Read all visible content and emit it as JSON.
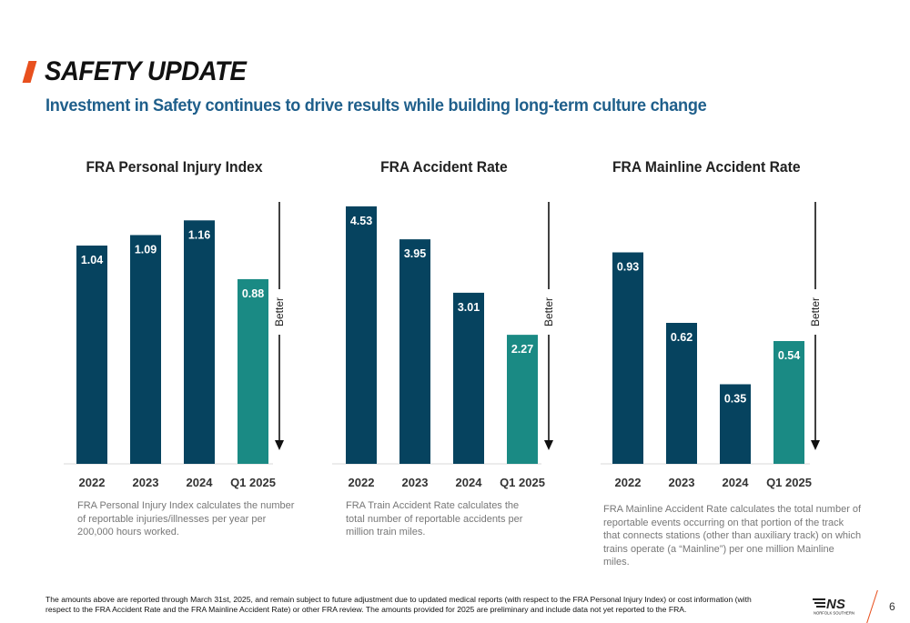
{
  "header": {
    "title": "SAFETY UPDATE",
    "subtitle": "Investment in Safety continues to drive results while building long-term culture change"
  },
  "colors": {
    "accent": "#e8501e",
    "bar_primary": "#06435f",
    "bar_highlight": "#1a8a84",
    "subtitle": "#1f5f8b",
    "note": "#777777"
  },
  "better_label": "Better",
  "chart_data": [
    {
      "type": "bar",
      "title": "FRA Personal Injury Index",
      "categories": [
        "2022",
        "2023",
        "2024",
        "Q1 2025"
      ],
      "values": [
        1.04,
        1.09,
        1.16,
        0.88
      ],
      "ylim": [
        0,
        1.3
      ],
      "highlight_index": 3,
      "note": "FRA Personal Injury Index calculates the number of reportable injuries/illnesses per year per 200,000 hours worked."
    },
    {
      "type": "bar",
      "title": "FRA Accident Rate",
      "categories": [
        "2022",
        "2023",
        "2024",
        "Q1 2025"
      ],
      "values": [
        4.53,
        3.95,
        3.01,
        2.27
      ],
      "ylim": [
        0,
        4.8
      ],
      "highlight_index": 3,
      "note": "FRA Train Accident Rate calculates the total number of reportable accidents per million train miles."
    },
    {
      "type": "bar",
      "title": "FRA Mainline Accident Rate",
      "categories": [
        "2022",
        "2023",
        "2024",
        "Q1 2025"
      ],
      "values": [
        0.93,
        0.62,
        0.35,
        0.54
      ],
      "ylim": [
        0,
        1.2
      ],
      "highlight_index": 3,
      "note": "FRA Mainline Accident Rate calculates the total number of reportable events occurring on that portion of the track that connects stations (other than auxiliary track) on which trains operate (a “Mainline”) per one million Mainline miles."
    }
  ],
  "footer": {
    "disclaimer": "The amounts above are reported through March 31st, 2025, and remain subject to future adjustment due to updated medical reports (with respect to the FRA Personal Injury Index) or cost information (with respect to the FRA Accident Rate and the FRA Mainline Accident Rate) or other FRA review. The amounts provided for 2025 are preliminary and include data not yet reported to the FRA.",
    "logo_text": "NS",
    "logo_subtext": "NORFOLK SOUTHERN",
    "page_number": "6"
  }
}
